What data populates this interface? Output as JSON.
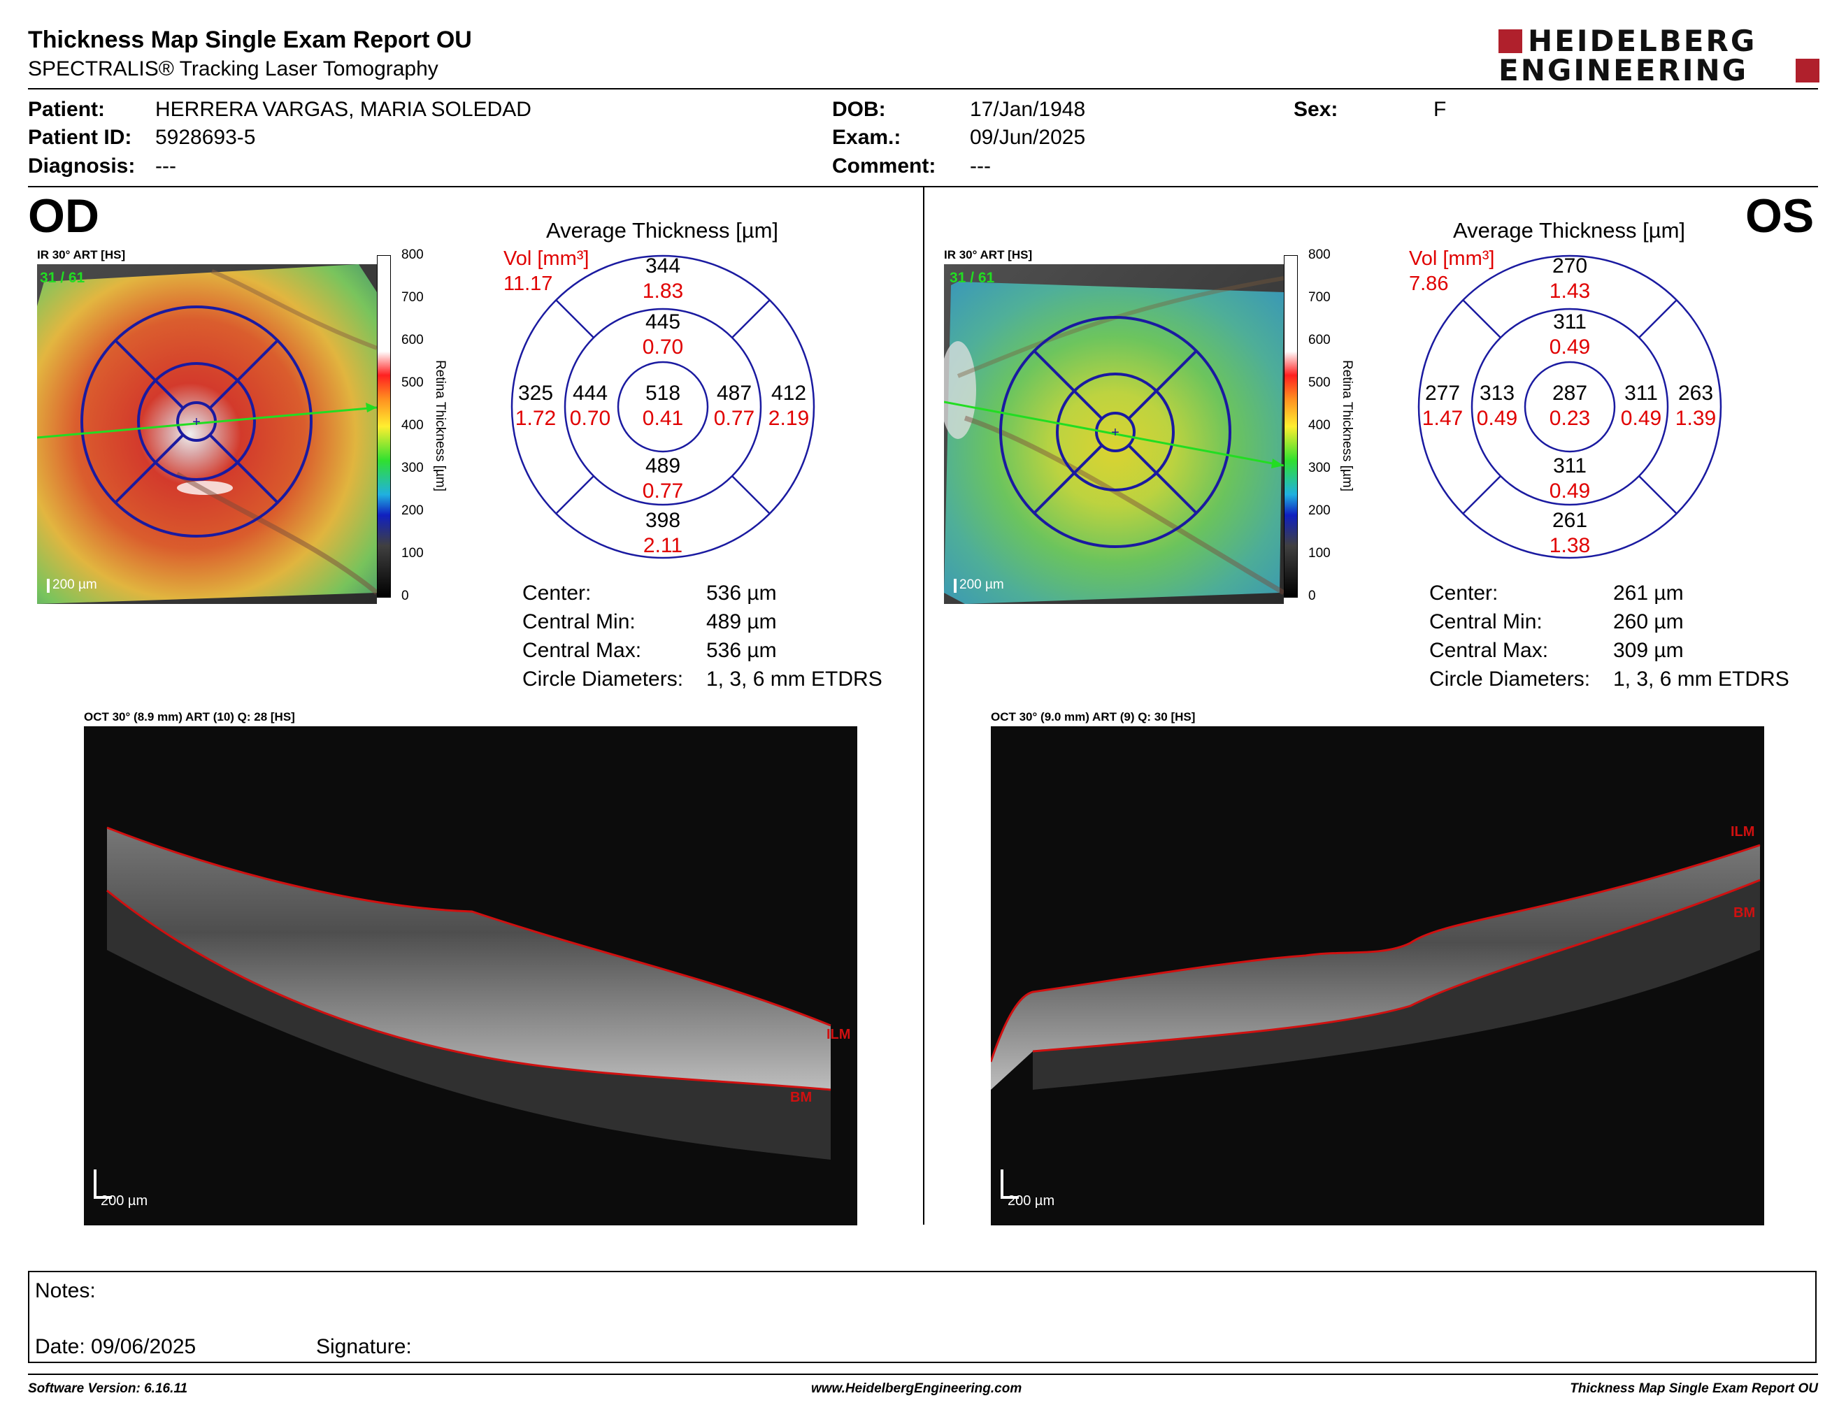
{
  "header": {
    "title": "Thickness Map Single Exam Report OU",
    "subtitle": "SPECTRALIS® Tracking Laser Tomography",
    "logo_line1": "HEIDELBERG",
    "logo_line2": "ENGINEERING"
  },
  "patient": {
    "patient_label": "Patient:",
    "patient_value": "HERRERA VARGAS, MARIA SOLEDAD",
    "id_label": "Patient ID:",
    "id_value": "5928693-5",
    "diagnosis_label": "Diagnosis:",
    "diagnosis_value": "---",
    "dob_label": "DOB:",
    "dob_value": "17/Jan/1948",
    "exam_label": "Exam.:",
    "exam_value": "09/Jun/2025",
    "comment_label": "Comment:",
    "comment_value": "---",
    "sex_label": "Sex:",
    "sex_value": "F"
  },
  "scale": {
    "ticks": [
      "800",
      "700",
      "600",
      "500",
      "400",
      "300",
      "200",
      "100",
      "0"
    ],
    "label": "Retina Thickness [µm]"
  },
  "od": {
    "eye": "OD",
    "ir_label": "IR 30° ART [HS]",
    "frame_count": "31 / 61",
    "ir_scalebar": "200 µm",
    "avg_title": "Average Thickness [µm]",
    "vol_label": "Vol [mm³]",
    "vol_total": "11.17",
    "grid": {
      "center": {
        "t": "518",
        "v": "0.41"
      },
      "inner_top": {
        "t": "445",
        "v": "0.70"
      },
      "inner_bottom": {
        "t": "489",
        "v": "0.77"
      },
      "inner_left": {
        "t": "444",
        "v": "0.70"
      },
      "inner_right": {
        "t": "487",
        "v": "0.77"
      },
      "outer_top": {
        "t": "344",
        "v": "1.83"
      },
      "outer_bottom": {
        "t": "398",
        "v": "2.11"
      },
      "outer_left": {
        "t": "325",
        "v": "1.72"
      },
      "outer_right": {
        "t": "412",
        "v": "2.19"
      }
    },
    "stats": [
      {
        "label": "Center:",
        "value": "536 µm"
      },
      {
        "label": "Central Min:",
        "value": "489 µm"
      },
      {
        "label": "Central Max:",
        "value": "536 µm"
      },
      {
        "label": "Circle Diameters:",
        "value": "1, 3, 6 mm ETDRS"
      }
    ],
    "oct_label": "OCT 30° (8.9 mm) ART (10) Q: 28 [HS]",
    "oct_scalebar": "200 µm",
    "ilm": "ILM",
    "bm": "BM"
  },
  "os": {
    "eye": "OS",
    "ir_label": "IR 30° ART [HS]",
    "frame_count": "31 / 61",
    "ir_scalebar": "200 µm",
    "avg_title": "Average Thickness [µm]",
    "vol_label": "Vol [mm³]",
    "vol_total": "7.86",
    "grid": {
      "center": {
        "t": "287",
        "v": "0.23"
      },
      "inner_top": {
        "t": "311",
        "v": "0.49"
      },
      "inner_bottom": {
        "t": "311",
        "v": "0.49"
      },
      "inner_left": {
        "t": "313",
        "v": "0.49"
      },
      "inner_right": {
        "t": "311",
        "v": "0.49"
      },
      "outer_top": {
        "t": "270",
        "v": "1.43"
      },
      "outer_bottom": {
        "t": "261",
        "v": "1.38"
      },
      "outer_left": {
        "t": "277",
        "v": "1.47"
      },
      "outer_right": {
        "t": "263",
        "v": "1.39"
      }
    },
    "stats": [
      {
        "label": "Center:",
        "value": "261 µm"
      },
      {
        "label": "Central Min:",
        "value": "260 µm"
      },
      {
        "label": "Central Max:",
        "value": "309 µm"
      },
      {
        "label": "Circle Diameters:",
        "value": "1, 3, 6 mm ETDRS"
      }
    ],
    "oct_label": "OCT 30° (9.0 mm) ART (9) Q: 30 [HS]",
    "oct_scalebar": "200 µm",
    "ilm": "ILM",
    "bm": "BM"
  },
  "notes": {
    "notes_label": "Notes:",
    "date_label": "Date: 09/06/2025",
    "signature_label": "Signature:"
  },
  "footer": {
    "software": "Software Version: 6.16.11",
    "website": "www.HeidelbergEngineering.com",
    "report_name": "Thickness Map Single Exam Report OU"
  },
  "colors": {
    "value_red": "#e00000",
    "grid_blue": "#1a1aa0",
    "scan_green": "#22dd22",
    "layer_red": "#d01010"
  }
}
